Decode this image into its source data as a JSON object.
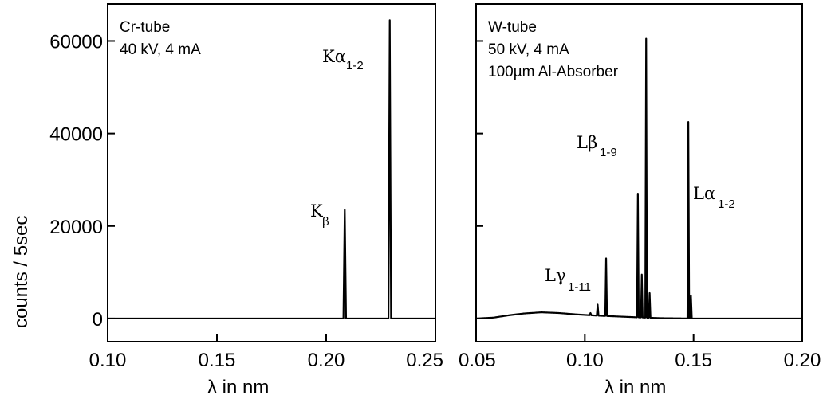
{
  "chart_data": [
    {
      "type": "line",
      "xlabel": "λ in nm",
      "ylabel": "counts / 5sec",
      "xlim": [
        0.1,
        0.25
      ],
      "ylim": [
        -5000,
        68000
      ],
      "xticks": [
        "0.10",
        "0.15",
        "0.20",
        "0.25"
      ],
      "xtick_values": [
        0.1,
        0.15,
        0.2,
        0.25
      ],
      "yticks": [
        "0",
        "20000",
        "40000",
        "60000"
      ],
      "ytick_values": [
        0,
        20000,
        40000,
        60000
      ],
      "annotation_lines": [
        "Cr-tube",
        "40 kV, 4 mA"
      ],
      "peaks": [
        {
          "x": 0.2085,
          "y": 23500,
          "width": 0.0012,
          "label": "K",
          "sub": "β"
        },
        {
          "x": 0.2291,
          "y": 64500,
          "width": 0.0012,
          "label": "Kα",
          "sub": "1-2"
        }
      ],
      "background": [
        {
          "x": 0.1,
          "y": 0
        },
        {
          "x": 0.25,
          "y": 0
        }
      ]
    },
    {
      "type": "line",
      "xlabel": "λ in nm",
      "xlim": [
        0.05,
        0.2
      ],
      "ylim": [
        -5000,
        68000
      ],
      "xticks": [
        "0.05",
        "0.10",
        "0.15",
        "0.20"
      ],
      "xtick_values": [
        0.05,
        0.1,
        0.15,
        0.2
      ],
      "ytick_values": [
        0,
        20000,
        40000,
        60000
      ],
      "annotation_lines": [
        "W-tube",
        "50 kV, 4 mA",
        "100µm Al-Absorber"
      ],
      "peaks": [
        {
          "x": 0.1026,
          "y": 1200,
          "width": 0.0008
        },
        {
          "x": 0.1059,
          "y": 3000,
          "width": 0.0008
        },
        {
          "x": 0.1098,
          "y": 13000,
          "width": 0.0008,
          "label": "Lγ",
          "sub": "1-11"
        },
        {
          "x": 0.1244,
          "y": 27000,
          "width": 0.0008
        },
        {
          "x": 0.1262,
          "y": 9500,
          "width": 0.0008
        },
        {
          "x": 0.1282,
          "y": 60500,
          "width": 0.0008,
          "label": "Lβ",
          "sub": "1-9"
        },
        {
          "x": 0.1298,
          "y": 5500,
          "width": 0.0008
        },
        {
          "x": 0.1476,
          "y": 42500,
          "width": 0.0008,
          "label": "Lα",
          "sub": "1-2"
        },
        {
          "x": 0.1488,
          "y": 5000,
          "width": 0.0008
        }
      ],
      "background": [
        {
          "x": 0.05,
          "y": 0
        },
        {
          "x": 0.058,
          "y": 200
        },
        {
          "x": 0.065,
          "y": 700
        },
        {
          "x": 0.072,
          "y": 1100
        },
        {
          "x": 0.08,
          "y": 1350
        },
        {
          "x": 0.088,
          "y": 1200
        },
        {
          "x": 0.096,
          "y": 900
        },
        {
          "x": 0.105,
          "y": 650
        },
        {
          "x": 0.115,
          "y": 450
        },
        {
          "x": 0.125,
          "y": 250
        },
        {
          "x": 0.135,
          "y": 80
        },
        {
          "x": 0.15,
          "y": 0
        },
        {
          "x": 0.2,
          "y": 0
        }
      ]
    }
  ]
}
